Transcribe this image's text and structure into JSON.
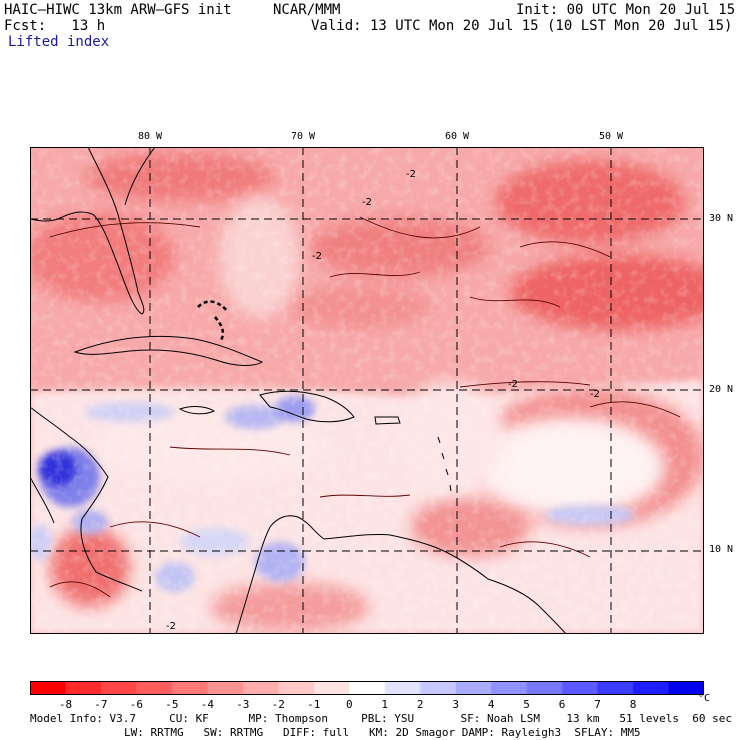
{
  "header": {
    "model": "HAIC–HIWC 13km ARW–GFS init",
    "org": "NCAR/MMM",
    "init": "Init: 00 UTC Mon 20 Jul 15",
    "fcst": "Fcst:   13 h",
    "valid": "Valid: 13 UTC Mon 20 Jul 15 (10 LST Mon 20 Jul 15)",
    "field": "Lifted index"
  },
  "map": {
    "lon_labels": [
      "80 W",
      "70 W",
      "60 W",
      "50 W"
    ],
    "lat_labels": [
      "30 N",
      "20 N",
      "10 N"
    ],
    "contour_label": "-2",
    "colors": {
      "strong_unstable": "#e82020",
      "unstable": "#f26464",
      "weak_unstable": "#f7a0a0",
      "near_zero": "#fcd6d6",
      "neutral": "#ffffff",
      "weak_stable": "#c8c8f5",
      "stable": "#8c8cf0",
      "strong_stable": "#2020e0"
    }
  },
  "colorbar": {
    "labels": [
      "-8",
      "-7",
      "-6",
      "-5",
      "-4",
      "-3",
      "-2",
      "-1",
      "0",
      "1",
      "2",
      "3",
      "4",
      "5",
      "6",
      "7",
      "8"
    ],
    "unit": "°C",
    "colors": [
      "#ff0000",
      "#ff2a2a",
      "#ff4646",
      "#ff5e5e",
      "#ff7878",
      "#ff9292",
      "#ffacac",
      "#ffc8c8",
      "#ffe2e2",
      "#ffffff",
      "#e2e2ff",
      "#c8c8ff",
      "#acacff",
      "#9292ff",
      "#7878ff",
      "#5a5aff",
      "#3c3cff",
      "#1e1eff",
      "#0000ee"
    ]
  },
  "footer": {
    "line1": "Model Info: V3.7     CU: KF      MP: Thompson     PBL: YSU       SF: Noah LSM    13 km   51 levels  60 sec",
    "line2": "LW: RRTMG   SW: RRTMG   DIFF: full   KM: 2D Smagor DAMP: Rayleigh3  SFLAY: MM5"
  }
}
